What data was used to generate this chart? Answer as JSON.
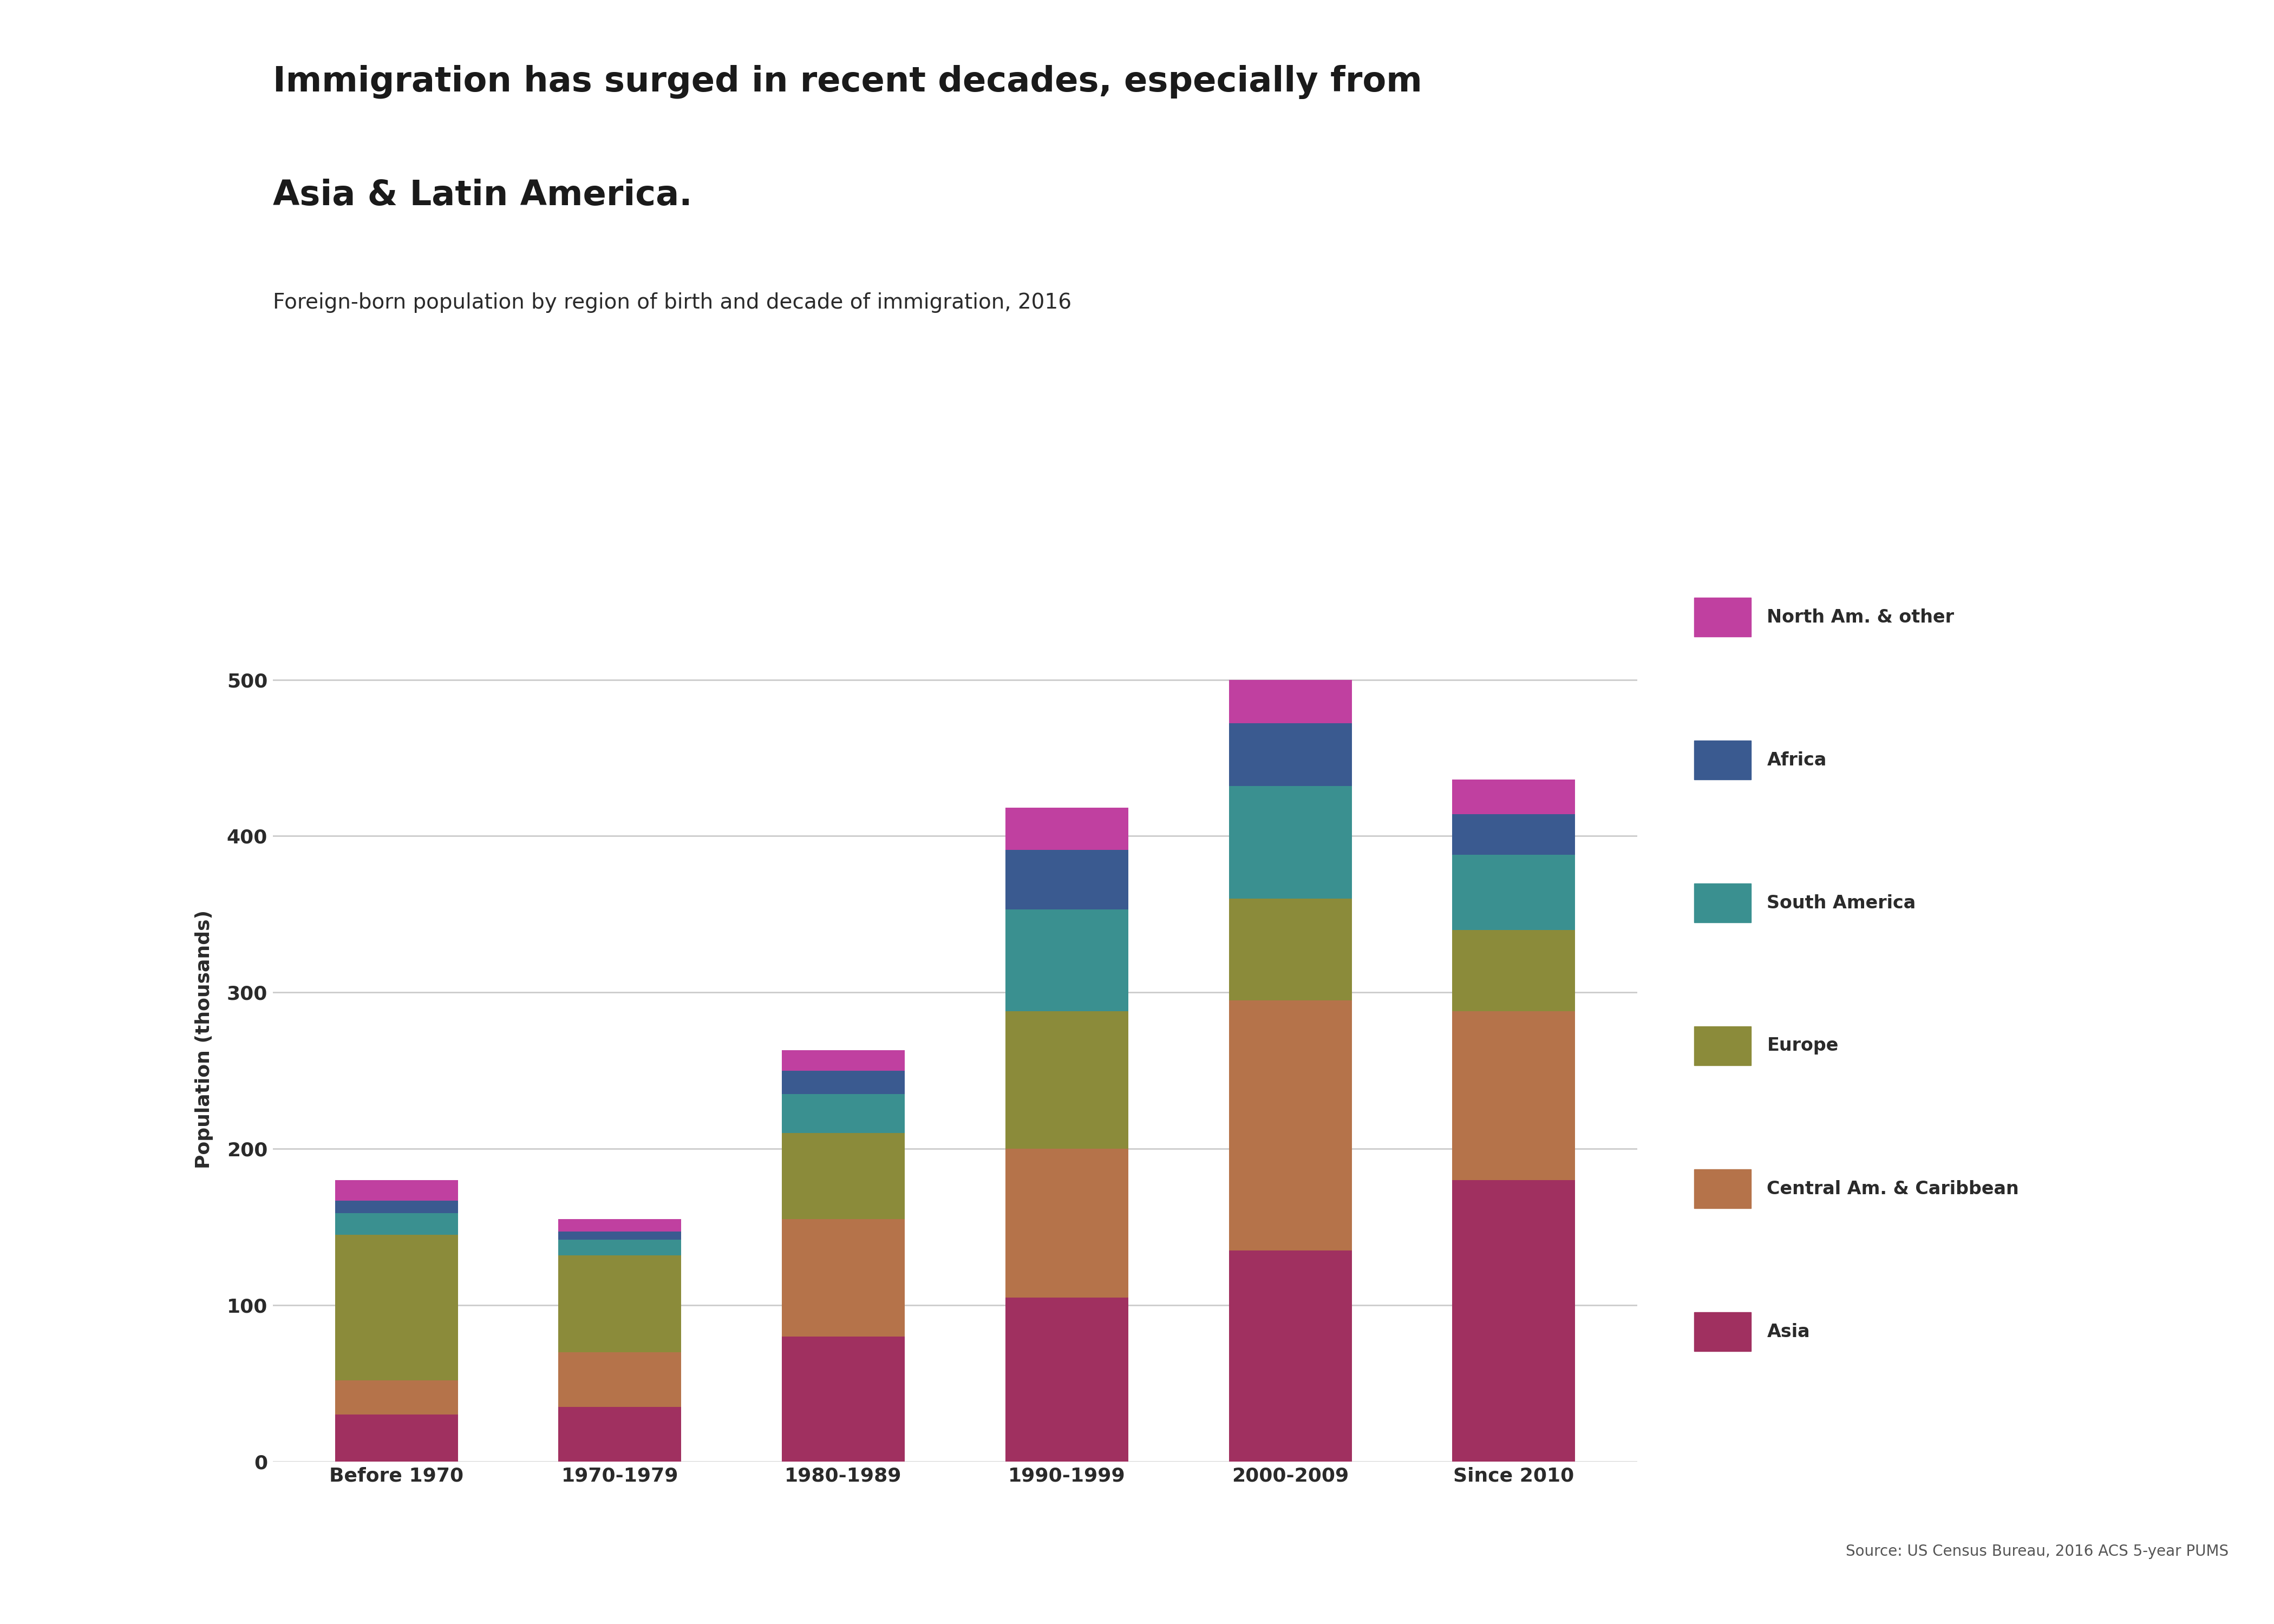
{
  "categories": [
    "Before 1970",
    "1970-1979",
    "1980-1989",
    "1990-1999",
    "2000-2009",
    "Since 2010"
  ],
  "segments": [
    "Asia",
    "Central Am. & Caribbean",
    "Europe",
    "South America",
    "Africa",
    "North Am. & other"
  ],
  "colors": [
    "#A03060",
    "#B5734A",
    "#8B8B3A",
    "#3A9090",
    "#3A5A90",
    "#C040A0"
  ],
  "values": {
    "Asia": [
      30,
      35,
      80,
      105,
      135,
      180
    ],
    "Central Am. & Caribbean": [
      22,
      35,
      75,
      95,
      160,
      108
    ],
    "Europe": [
      93,
      62,
      55,
      88,
      65,
      52
    ],
    "South America": [
      14,
      10,
      25,
      65,
      72,
      48
    ],
    "Africa": [
      8,
      5,
      15,
      38,
      40,
      26
    ],
    "North Am. & other": [
      13,
      8,
      13,
      27,
      28,
      22
    ]
  },
  "title_line1": "Immigration has surged in recent decades, especially from",
  "title_line2": "Asia & Latin America.",
  "subtitle": "Foreign-born population by region of birth and decade of immigration, 2016",
  "ylabel": "Population (thousands)",
  "ylim": [
    0,
    540
  ],
  "yticks": [
    0,
    100,
    200,
    300,
    400,
    500
  ],
  "source": "Source: US Census Bureau, 2016 ACS 5-year PUMS",
  "bg_color": "#FFFFFF",
  "grid_color": "#CCCCCC"
}
